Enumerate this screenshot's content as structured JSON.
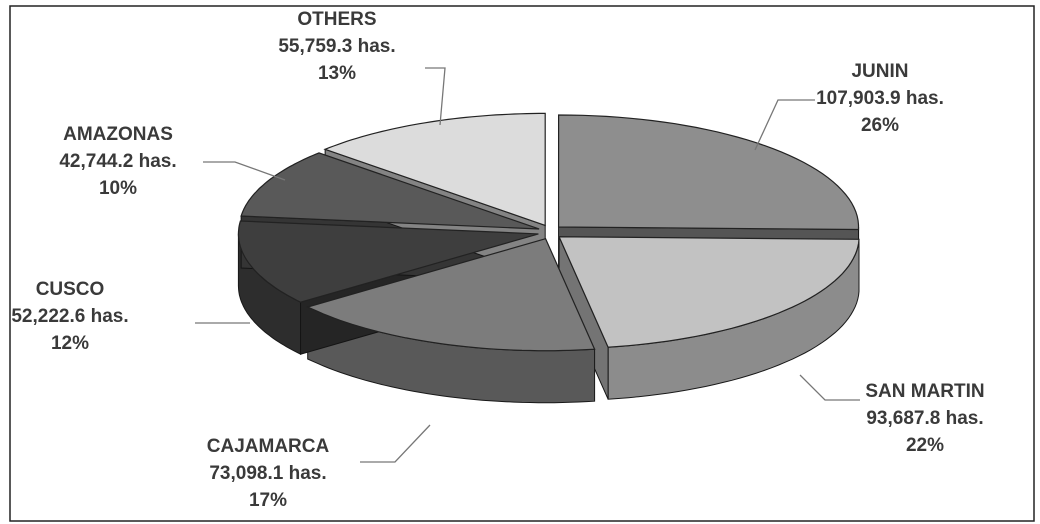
{
  "chart_data": {
    "type": "pie",
    "categories": [
      "JUNIN",
      "SAN MARTIN",
      "CAJAMARCA",
      "CUSCO",
      "AMAZONAS",
      "OTHERS"
    ],
    "values": [
      107903.9,
      93687.8,
      73098.1,
      52222.6,
      42744.2,
      55759.3
    ],
    "value_labels": [
      "107,903.9  has.",
      "93,687.8  has.",
      "73,098.1  has.",
      "52,222.6  has.",
      "42,744.2 has.",
      "55,759.3  has."
    ],
    "percents": [
      26,
      22,
      17,
      12,
      10,
      13
    ],
    "percent_labels": [
      "26%",
      "22%",
      "17%",
      "12%",
      "10%",
      "13%"
    ],
    "colors": [
      "#8e8e8e",
      "#c2c2c2",
      "#7c7c7c",
      "#3e3e3e",
      "#595959",
      "#dcdcdc"
    ]
  }
}
